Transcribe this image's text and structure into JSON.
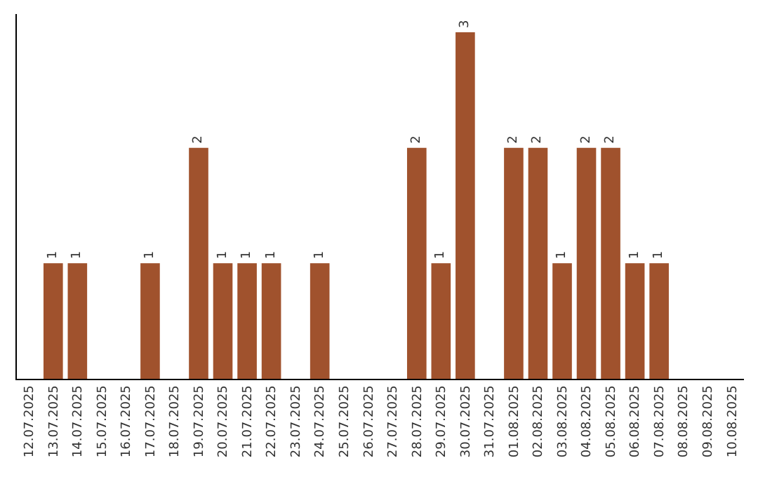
{
  "chart_data": {
    "type": "bar",
    "categories": [
      "12.07.2025",
      "13.07.2025",
      "14.07.2025",
      "15.07.2025",
      "16.07.2025",
      "17.07.2025",
      "18.07.2025",
      "19.07.2025",
      "20.07.2025",
      "21.07.2025",
      "22.07.2025",
      "23.07.2025",
      "24.07.2025",
      "25.07.2025",
      "26.07.2025",
      "27.07.2025",
      "28.07.2025",
      "29.07.2025",
      "30.07.2025",
      "31.07.2025",
      "01.08.2025",
      "02.08.2025",
      "03.08.2025",
      "04.08.2025",
      "05.08.2025",
      "06.08.2025",
      "07.08.2025",
      "08.08.2025",
      "09.08.2025",
      "10.08.2025"
    ],
    "values": [
      0,
      1,
      1,
      0,
      0,
      1,
      0,
      2,
      1,
      1,
      1,
      0,
      1,
      0,
      0,
      0,
      2,
      1,
      3,
      0,
      2,
      2,
      1,
      2,
      2,
      1,
      1,
      0,
      0,
      0
    ],
    "value_labels": [
      null,
      "1",
      "1",
      null,
      null,
      "1",
      null,
      "2",
      "1",
      "1",
      "1",
      null,
      "1",
      null,
      null,
      null,
      "2",
      "1",
      "3",
      null,
      "2",
      "2",
      "1",
      "2",
      "2",
      "1",
      "1",
      null,
      null,
      null
    ],
    "color": "#a0522d",
    "tick_labels": "x",
    "legend": false
  }
}
